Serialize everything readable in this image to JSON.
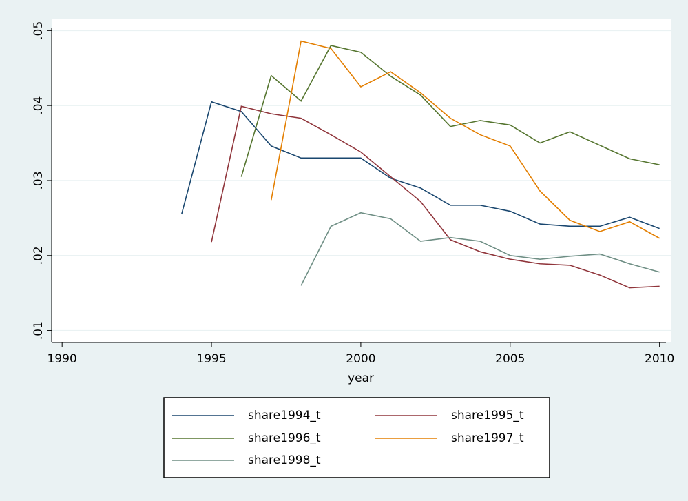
{
  "chart_data": {
    "type": "line",
    "x": [
      1994,
      1995,
      1996,
      1997,
      1998,
      1999,
      2000,
      2001,
      2002,
      2003,
      2004,
      2005,
      2006,
      2007,
      2008,
      2009,
      2010
    ],
    "x_label": "year",
    "series": [
      {
        "name": "share1994_t",
        "color": "#1a476f",
        "values": [
          0.0255,
          0.0405,
          0.0392,
          0.0346,
          0.033,
          0.033,
          0.033,
          0.0303,
          0.029,
          0.0267,
          0.0267,
          0.0259,
          0.0242,
          0.0239,
          0.0239,
          0.0251,
          0.0236
        ]
      },
      {
        "name": "share1995_t",
        "color": "#90353b",
        "values": [
          null,
          0.0218,
          0.0399,
          0.0389,
          0.0383,
          0.0361,
          0.0338,
          0.0305,
          0.0272,
          0.0221,
          0.0205,
          0.0195,
          0.0189,
          0.0187,
          0.0174,
          0.0157,
          0.0159
        ]
      },
      {
        "name": "share1996_t",
        "color": "#55752f",
        "values": [
          null,
          null,
          0.0305,
          0.044,
          0.0406,
          0.048,
          0.0471,
          0.0439,
          0.0414,
          0.0372,
          0.038,
          0.0374,
          0.035,
          0.0365,
          0.0347,
          0.0329,
          0.0321
        ]
      },
      {
        "name": "share1997_t",
        "color": "#e37e00",
        "values": [
          null,
          null,
          null,
          0.0274,
          0.0486,
          0.0476,
          0.0425,
          0.0445,
          0.0417,
          0.0383,
          0.0361,
          0.0346,
          0.0286,
          0.0247,
          0.0232,
          0.0245,
          0.0223
        ]
      },
      {
        "name": "share1998_t",
        "color": "#6e8e84",
        "values": [
          null,
          null,
          null,
          null,
          0.016,
          0.0239,
          0.0257,
          0.0249,
          0.0219,
          0.0224,
          0.0219,
          0.02,
          0.0195,
          0.0199,
          0.0202,
          0.0189,
          0.0178
        ]
      }
    ],
    "xlim": [
      1989.65,
      2010.4
    ],
    "xticks": [
      1990,
      1995,
      2000,
      2005,
      2010
    ],
    "ylim": [
      0.0084,
      0.0515
    ],
    "yticks": [
      {
        "value": 0.01,
        "label": ".01"
      },
      {
        "value": 0.02,
        "label": ".02"
      },
      {
        "value": 0.03,
        "label": ".03"
      },
      {
        "value": 0.04,
        "label": ".04"
      },
      {
        "value": 0.05,
        "label": ".05"
      }
    ],
    "grid": true,
    "legend": "bottom"
  }
}
